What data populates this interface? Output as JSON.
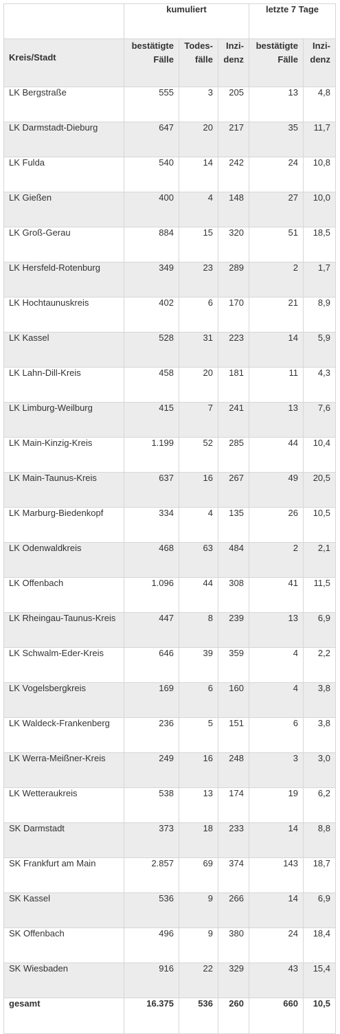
{
  "header": {
    "group_cumulative": "kumuliert",
    "group_last7": "letzte 7 Tage",
    "col_name": "Kreis/Stadt",
    "col_cases": [
      "bestätigte",
      "Fälle"
    ],
    "col_deaths": [
      "Todes-",
      "fälle"
    ],
    "col_incidence": [
      "Inzi-",
      "denz"
    ],
    "col_cases7": [
      "bestätigte",
      "Fälle"
    ],
    "col_incidence7": [
      "Inzi-",
      "denz"
    ]
  },
  "rows": [
    {
      "name": "LK Bergstraße",
      "cases": "555",
      "deaths": "3",
      "incidence": "205",
      "cases7": "13",
      "incidence7": "4,8"
    },
    {
      "name": "LK Darmstadt-Dieburg",
      "cases": "647",
      "deaths": "20",
      "incidence": "217",
      "cases7": "35",
      "incidence7": "11,7"
    },
    {
      "name": "LK Fulda",
      "cases": "540",
      "deaths": "14",
      "incidence": "242",
      "cases7": "24",
      "incidence7": "10,8"
    },
    {
      "name": "LK Gießen",
      "cases": "400",
      "deaths": "4",
      "incidence": "148",
      "cases7": "27",
      "incidence7": "10,0"
    },
    {
      "name": "LK Groß-Gerau",
      "cases": "884",
      "deaths": "15",
      "incidence": "320",
      "cases7": "51",
      "incidence7": "18,5"
    },
    {
      "name": "LK Hersfeld-Rotenburg",
      "cases": "349",
      "deaths": "23",
      "incidence": "289",
      "cases7": "2",
      "incidence7": "1,7"
    },
    {
      "name": "LK Hochtaunuskreis",
      "cases": "402",
      "deaths": "6",
      "incidence": "170",
      "cases7": "21",
      "incidence7": "8,9"
    },
    {
      "name": "LK Kassel",
      "cases": "528",
      "deaths": "31",
      "incidence": "223",
      "cases7": "14",
      "incidence7": "5,9"
    },
    {
      "name": "LK Lahn-Dill-Kreis",
      "cases": "458",
      "deaths": "20",
      "incidence": "181",
      "cases7": "11",
      "incidence7": "4,3"
    },
    {
      "name": "LK Limburg-Weilburg",
      "cases": "415",
      "deaths": "7",
      "incidence": "241",
      "cases7": "13",
      "incidence7": "7,6"
    },
    {
      "name": "LK Main-Kinzig-Kreis",
      "cases": "1.199",
      "deaths": "52",
      "incidence": "285",
      "cases7": "44",
      "incidence7": "10,4"
    },
    {
      "name": "LK Main-Taunus-Kreis",
      "cases": "637",
      "deaths": "16",
      "incidence": "267",
      "cases7": "49",
      "incidence7": "20,5"
    },
    {
      "name": "LK Marburg-Biedenkopf",
      "cases": "334",
      "deaths": "4",
      "incidence": "135",
      "cases7": "26",
      "incidence7": "10,5"
    },
    {
      "name": "LK Odenwaldkreis",
      "cases": "468",
      "deaths": "63",
      "incidence": "484",
      "cases7": "2",
      "incidence7": "2,1"
    },
    {
      "name": "LK Offenbach",
      "cases": "1.096",
      "deaths": "44",
      "incidence": "308",
      "cases7": "41",
      "incidence7": "11,5"
    },
    {
      "name": "LK Rheingau-Taunus-Kreis",
      "cases": "447",
      "deaths": "8",
      "incidence": "239",
      "cases7": "13",
      "incidence7": "6,9"
    },
    {
      "name": "LK Schwalm-Eder-Kreis",
      "cases": "646",
      "deaths": "39",
      "incidence": "359",
      "cases7": "4",
      "incidence7": "2,2"
    },
    {
      "name": "LK Vogelsbergkreis",
      "cases": "169",
      "deaths": "6",
      "incidence": "160",
      "cases7": "4",
      "incidence7": "3,8"
    },
    {
      "name": "LK Waldeck-Frankenberg",
      "cases": "236",
      "deaths": "5",
      "incidence": "151",
      "cases7": "6",
      "incidence7": "3,8"
    },
    {
      "name": "LK Werra-Meißner-Kreis",
      "cases": "249",
      "deaths": "16",
      "incidence": "248",
      "cases7": "3",
      "incidence7": "3,0"
    },
    {
      "name": "LK Wetteraukreis",
      "cases": "538",
      "deaths": "13",
      "incidence": "174",
      "cases7": "19",
      "incidence7": "6,2"
    },
    {
      "name": "SK Darmstadt",
      "cases": "373",
      "deaths": "18",
      "incidence": "233",
      "cases7": "14",
      "incidence7": "8,8"
    },
    {
      "name": "SK Frankfurt am Main",
      "cases": "2.857",
      "deaths": "69",
      "incidence": "374",
      "cases7": "143",
      "incidence7": "18,7"
    },
    {
      "name": "SK Kassel",
      "cases": "536",
      "deaths": "9",
      "incidence": "266",
      "cases7": "14",
      "incidence7": "6,9"
    },
    {
      "name": "SK Offenbach",
      "cases": "496",
      "deaths": "9",
      "incidence": "380",
      "cases7": "24",
      "incidence7": "18,4"
    },
    {
      "name": "SK Wiesbaden",
      "cases": "916",
      "deaths": "22",
      "incidence": "329",
      "cases7": "43",
      "incidence7": "15,4"
    }
  ],
  "total": {
    "name": "gesamt",
    "cases": "16.375",
    "deaths": "536",
    "incidence": "260",
    "cases7": "660",
    "incidence7": "10,5"
  }
}
